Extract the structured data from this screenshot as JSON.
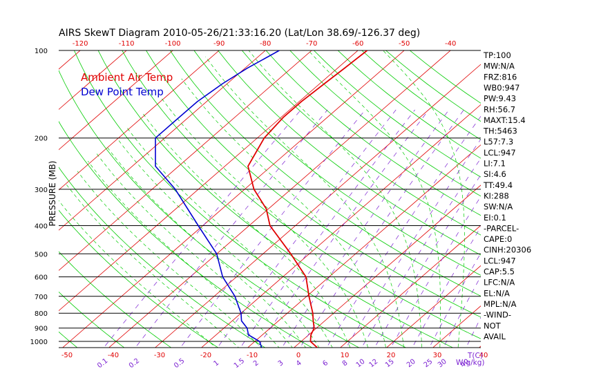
{
  "title": "AIRS SkewT Diagram 2010-05-26/21:33:16.20 (Lat/Lon 38.69/-126.37 deg)",
  "chart_data": {
    "type": "line",
    "title": "AIRS SkewT Diagram 2010-05-26/21:33:16.20 (Lat/Lon 38.69/-126.37 deg)",
    "ylabel": "PRESSURE (MB)",
    "xlabel": "T(C)",
    "mixing_ratio_label": "W(g/kg)",
    "y_scale": "log",
    "ylim": [
      1050,
      100
    ],
    "pressure_ticks": [
      100,
      200,
      300,
      400,
      500,
      600,
      700,
      800,
      900,
      1000
    ],
    "pressure_tick_labels": [
      "100",
      "200",
      "300",
      "400",
      "500",
      "600",
      "700",
      "800",
      "900",
      "1000"
    ],
    "top_temp_ticks": [
      -120,
      -110,
      -100,
      -90,
      -80,
      -70,
      -60,
      -50,
      -40
    ],
    "top_temp_tick_labels": [
      "-120",
      "-110",
      "-100",
      "-90",
      "-80",
      "-70",
      "-60",
      "-50",
      "-40"
    ],
    "bottom_temp_ticks": [
      -50,
      -40,
      -30,
      -20,
      -10,
      0,
      10,
      20,
      30,
      40
    ],
    "bottom_temp_tick_labels": [
      "-50",
      "-40",
      "-30",
      "-20",
      "-10",
      "0",
      "10",
      "20",
      "30",
      "40"
    ],
    "mixing_ratio_ticks": [
      0.1,
      0.2,
      0.5,
      1,
      1.5,
      2,
      3,
      4,
      6,
      8,
      10,
      12,
      15,
      20,
      25,
      30,
      40
    ],
    "mixing_ratio_tick_labels": [
      "0.1",
      "0.2",
      "0.5",
      "1",
      "1.5",
      "2",
      "3",
      "4",
      "6",
      "8",
      "10",
      "12",
      "15",
      "20",
      "25",
      "30",
      "40"
    ],
    "isotherms": [
      -160,
      -150,
      -140,
      -130,
      -120,
      -110,
      -100,
      -90,
      -80,
      -70,
      -60,
      -50,
      -40,
      -30,
      -20,
      -10,
      0,
      10,
      20,
      30,
      40
    ],
    "dry_adiabats": [
      -60,
      -50,
      -40,
      -30,
      -20,
      -10,
      0,
      10,
      20,
      30,
      40,
      50,
      60,
      70,
      80,
      90,
      100,
      110,
      120,
      130,
      140,
      150,
      160
    ],
    "moist_adiabats": [
      -20,
      -15,
      -10,
      -6,
      -3,
      0,
      3,
      6,
      10,
      14,
      18,
      22,
      26,
      30,
      34
    ],
    "series": [
      {
        "name": "Ambient Air Temp",
        "color": "#e00000",
        "points": [
          [
            1050,
            5.0
          ],
          [
            1000,
            2.0
          ],
          [
            950,
            0.5
          ],
          [
            900,
            -0.5
          ],
          [
            850,
            -2.5
          ],
          [
            800,
            -4.5
          ],
          [
            700,
            -9.5
          ],
          [
            600,
            -15.0
          ],
          [
            500,
            -24.0
          ],
          [
            400,
            -35.5
          ],
          [
            350,
            -40.5
          ],
          [
            300,
            -48.0
          ],
          [
            250,
            -55.0
          ],
          [
            200,
            -58.5
          ],
          [
            170,
            -59.5
          ],
          [
            150,
            -59.5
          ],
          [
            130,
            -59.0
          ],
          [
            115,
            -58.5
          ],
          [
            100,
            -58.0
          ]
        ]
      },
      {
        "name": "Dew Point Temp",
        "color": "#0000d0",
        "points": [
          [
            1050,
            -7.0
          ],
          [
            1000,
            -9.0
          ],
          [
            950,
            -13.0
          ],
          [
            900,
            -15.0
          ],
          [
            850,
            -18.0
          ],
          [
            800,
            -20.0
          ],
          [
            700,
            -25.5
          ],
          [
            600,
            -33.0
          ],
          [
            500,
            -40.0
          ],
          [
            400,
            -51.0
          ],
          [
            300,
            -65.0
          ],
          [
            250,
            -75.0
          ],
          [
            200,
            -82.0
          ],
          [
            150,
            -82.0
          ],
          [
            130,
            -81.0
          ],
          [
            115,
            -79.5
          ],
          [
            100,
            -77.0
          ]
        ]
      }
    ]
  },
  "legend": {
    "ambient": "Ambient Air Temp",
    "dewpoint": "Dew Point Temp",
    "ambient_color": "#e00000",
    "dewpoint_color": "#0000d0"
  },
  "colors": {
    "isotherm": "#e00000",
    "dry_adiabat": "#00cc00",
    "moist_adiabat": "#00cc00",
    "mixing_ratio": "#7a1fd1",
    "pressure_line": "#000000"
  },
  "indices": [
    "TP:100",
    "MW:N/A",
    "FRZ:816",
    "WB0:947",
    "PW:9.43",
    "RH:56.7",
    "MAXT:15.4",
    "TH:5463",
    "L57:7.3",
    "LCL:947",
    "LI:7.1",
    "SI:4.6",
    "TT:49.4",
    "KI:288",
    "SW:N/A",
    "EI:0.1",
    "-PARCEL-",
    "CAPE:0",
    "CINH:20306",
    "LCL:947",
    "CAP:5.5",
    "LFC:N/A",
    "EL:N/A",
    "MPL:N/A",
    "-WIND-",
    "NOT",
    "AVAIL"
  ]
}
